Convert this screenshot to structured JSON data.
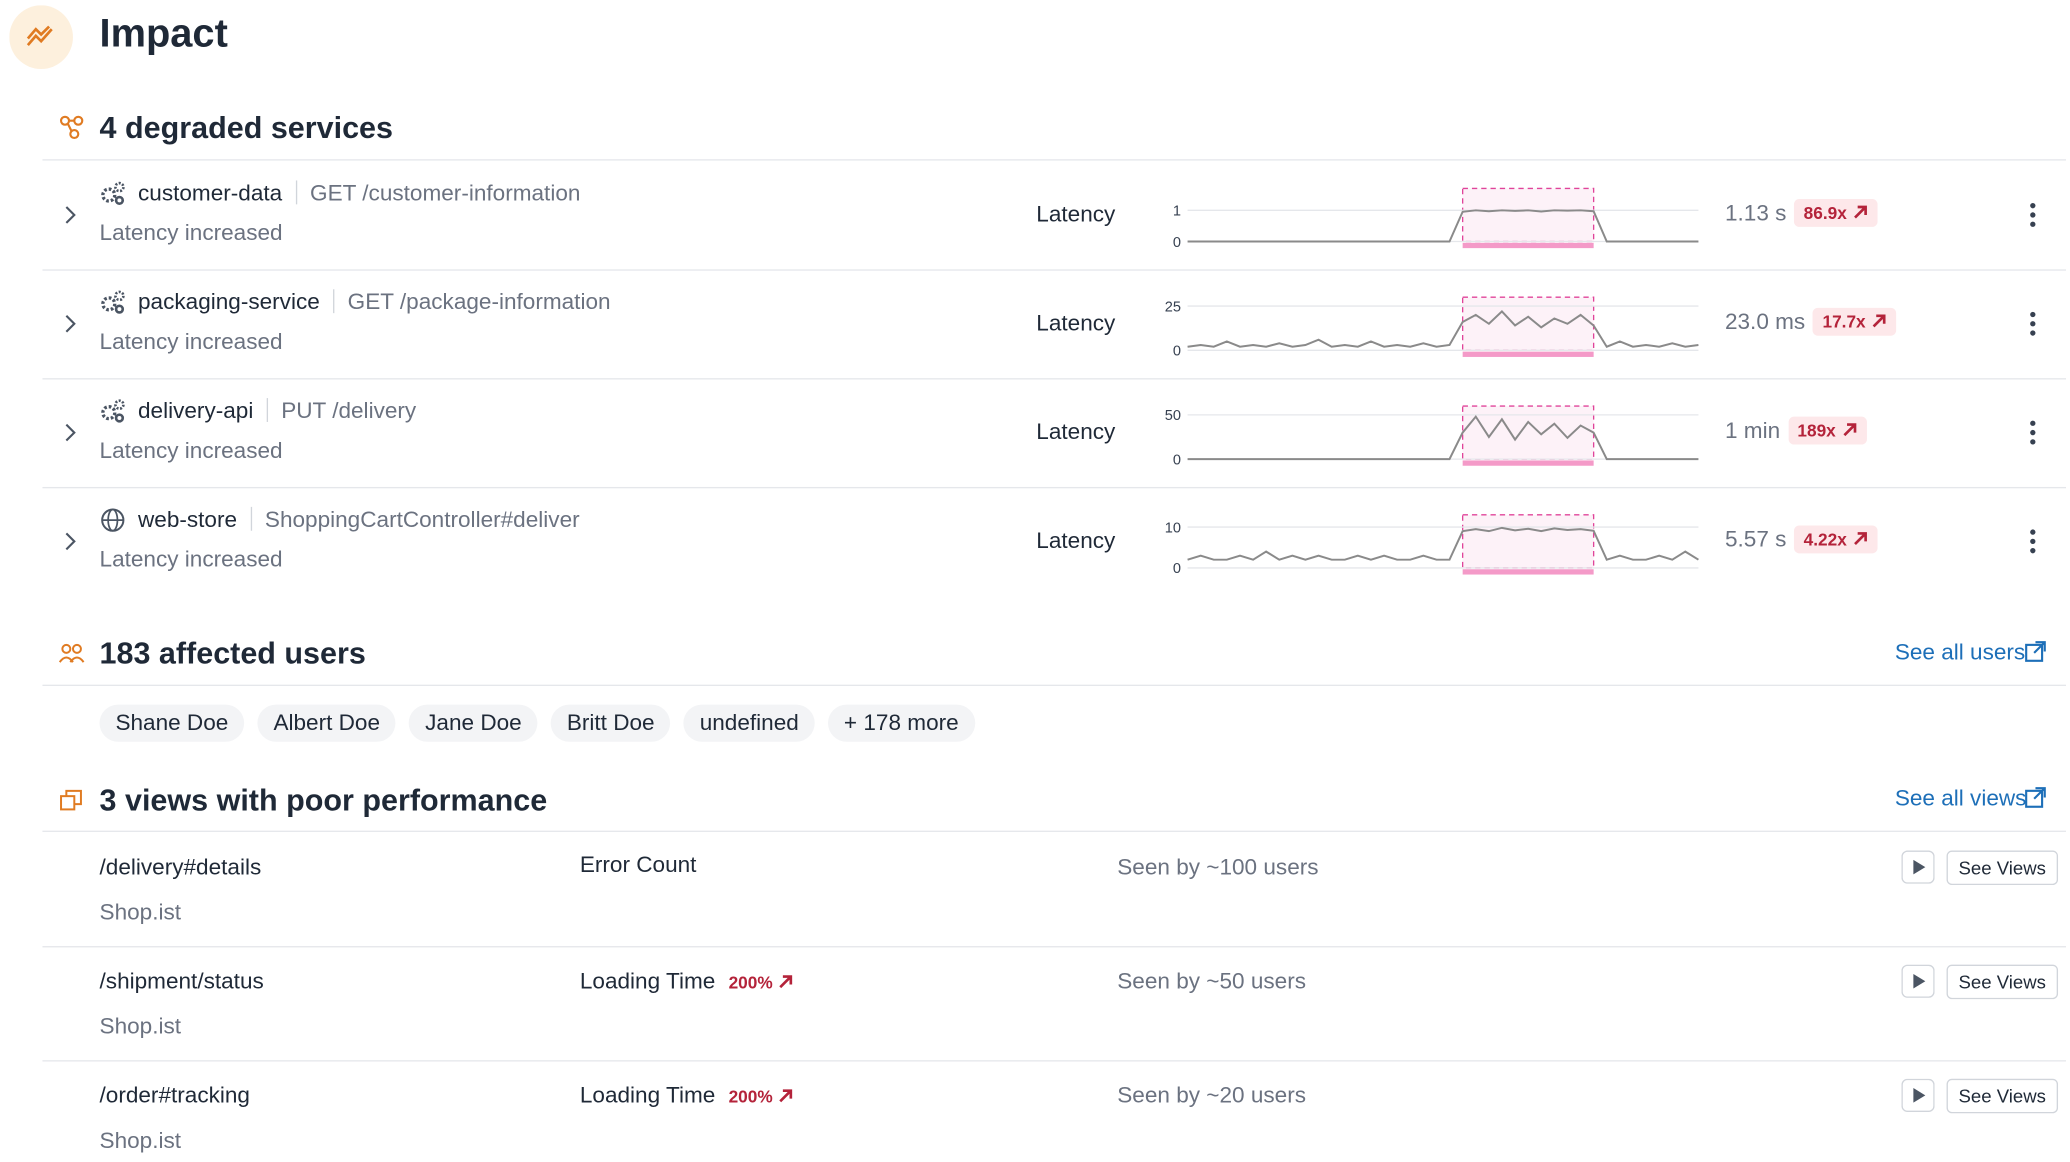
{
  "header": {
    "title": "Impact"
  },
  "services": {
    "title": "4 degraded services",
    "rows": [
      {
        "name": "customer-data",
        "endpoint": "GET /customer-information",
        "status": "Latency increased",
        "metric": "Latency",
        "chart": {
          "type": "line",
          "ylim": [
            0,
            1.7
          ],
          "yticks": [
            1,
            0
          ],
          "values": [
            0,
            0,
            0,
            0,
            0,
            0,
            0,
            0,
            0,
            0,
            0,
            0,
            0,
            0,
            0,
            0,
            0,
            0,
            0,
            0,
            0,
            0.95,
            1,
            0.97,
            1,
            0.98,
            1,
            0.96,
            1,
            0.99,
            1,
            0.97,
            0,
            0,
            0,
            0,
            0,
            0,
            0,
            0
          ]
        },
        "current": "1.13 s",
        "change": "86.9x"
      },
      {
        "name": "packaging-service",
        "endpoint": "GET /package-information",
        "status": "Latency increased",
        "metric": "Latency",
        "chart": {
          "type": "line",
          "ylim": [
            0,
            30
          ],
          "yticks": [
            25,
            0
          ],
          "values": [
            2,
            3,
            2,
            5,
            2,
            3,
            2,
            4,
            2,
            3,
            6,
            2,
            3,
            2,
            5,
            2,
            3,
            2,
            4,
            2,
            3,
            16,
            20,
            15,
            22,
            14,
            19,
            13,
            18,
            15,
            20,
            14,
            2,
            5,
            2,
            3,
            2,
            4,
            2,
            3
          ]
        },
        "current": "23.0 ms",
        "change": "17.7x"
      },
      {
        "name": "delivery-api",
        "endpoint": "PUT /delivery",
        "status": "Latency increased",
        "metric": "Latency",
        "chart": {
          "type": "line",
          "ylim": [
            0,
            60
          ],
          "yticks": [
            50,
            0
          ],
          "values": [
            0,
            0,
            0,
            0,
            0,
            0,
            0,
            0,
            0,
            0,
            0,
            0,
            0,
            0,
            0,
            0,
            0,
            0,
            0,
            0,
            0,
            30,
            48,
            25,
            45,
            22,
            42,
            28,
            40,
            24,
            38,
            30,
            0,
            0,
            0,
            0,
            0,
            0,
            0,
            0
          ]
        },
        "current": "1 min",
        "change": "189x"
      },
      {
        "name": "web-store",
        "endpoint": "ShoppingCartController#deliver",
        "status": "Latency increased",
        "metric": "Latency",
        "chart": {
          "type": "line",
          "ylim": [
            0,
            13
          ],
          "yticks": [
            10,
            0
          ],
          "values": [
            2,
            3,
            2,
            2,
            3,
            2,
            4,
            2,
            3,
            2,
            3,
            2,
            2,
            3,
            2,
            3,
            2,
            2,
            3,
            2,
            2,
            9,
            9.5,
            9,
            9.8,
            9.2,
            9.6,
            9,
            9.7,
            9.3,
            9.5,
            9.1,
            2,
            3,
            2,
            2,
            3,
            2,
            4,
            2
          ]
        },
        "current": "5.57 s",
        "change": "4.22x"
      }
    ]
  },
  "users": {
    "title": "183 affected users",
    "link": "See all users",
    "chips": [
      "Shane Doe",
      "Albert Doe",
      "Jane Doe",
      "Britt Doe",
      "undefined",
      "+ 178 more"
    ]
  },
  "views": {
    "title": "3 views with poor performance",
    "link": "See all views",
    "rows": [
      {
        "path": "/delivery#details",
        "app": "Shop.ist",
        "metric": "Error Count",
        "seen": "Seen by ~100 users",
        "button": "See Views"
      },
      {
        "path": "/shipment/status",
        "app": "Shop.ist",
        "metric": "Loading Time",
        "change": "200%",
        "seen": "Seen by ~50 users",
        "button": "See Views"
      },
      {
        "path": "/order#tracking",
        "app": "Shop.ist",
        "metric": "Loading Time",
        "change": "200%",
        "seen": "Seen by ~20 users",
        "button": "See Views"
      }
    ]
  }
}
